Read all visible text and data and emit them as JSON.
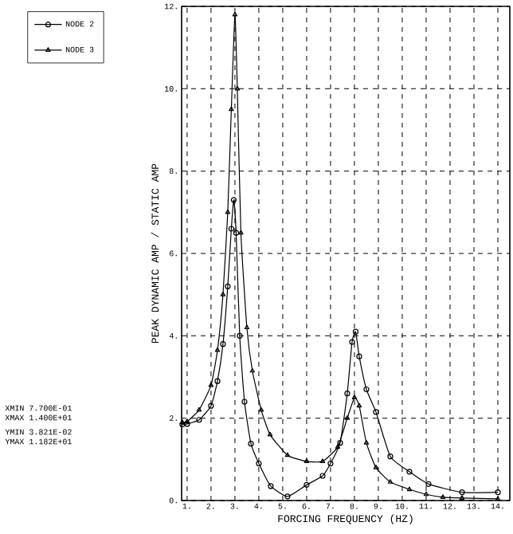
{
  "chart_data": {
    "type": "line",
    "xlabel": "FORCING FREQUENCY (HZ)",
    "ylabel": "PEAK DYNAMIC AMP / STATIC AMP",
    "xlim": [
      0.77,
      14.5
    ],
    "ylim": [
      0,
      12
    ],
    "xticks": [
      {
        "value": 1,
        "label": "1."
      },
      {
        "value": 2,
        "label": "2."
      },
      {
        "value": 3,
        "label": "3."
      },
      {
        "value": 4,
        "label": "4."
      },
      {
        "value": 5,
        "label": "5."
      },
      {
        "value": 6,
        "label": "6."
      },
      {
        "value": 7,
        "label": "7."
      },
      {
        "value": 8,
        "label": "8."
      },
      {
        "value": 9,
        "label": "9."
      },
      {
        "value": 10,
        "label": "10."
      },
      {
        "value": 11,
        "label": "11."
      },
      {
        "value": 12,
        "label": "12."
      },
      {
        "value": 13,
        "label": "13."
      },
      {
        "value": 14,
        "label": "14."
      }
    ],
    "yticks": [
      {
        "value": 0,
        "label": "0."
      },
      {
        "value": 2,
        "label": "2."
      },
      {
        "value": 4,
        "label": "4."
      },
      {
        "value": 6,
        "label": "6."
      },
      {
        "value": 8,
        "label": "8."
      },
      {
        "value": 10,
        "label": "10."
      },
      {
        "value": 12,
        "label": "12."
      }
    ],
    "grid": true,
    "legend": "left",
    "line_style": "solid",
    "series": [
      {
        "name": "NODE 2",
        "color": "#000000",
        "marker": "circle",
        "x": [
          0.8,
          1.0,
          1.5,
          2.0,
          2.27,
          2.5,
          2.7,
          2.85,
          2.95,
          3.05,
          3.2,
          3.4,
          3.67,
          4.0,
          4.5,
          5.2,
          6.0,
          6.67,
          7.0,
          7.4,
          7.7,
          7.9,
          8.05,
          8.2,
          8.5,
          8.9,
          9.5,
          10.3,
          11.1,
          12.5,
          14.0
        ],
        "values": [
          1.85,
          1.86,
          1.96,
          2.3,
          2.9,
          3.8,
          5.2,
          6.6,
          7.3,
          6.5,
          4.0,
          2.4,
          1.38,
          0.9,
          0.35,
          0.1,
          0.38,
          0.6,
          0.9,
          1.4,
          2.6,
          3.85,
          4.1,
          3.5,
          2.7,
          2.15,
          1.07,
          0.7,
          0.4,
          0.2,
          0.2
        ]
      },
      {
        "name": "NODE 3",
        "color": "#000000",
        "marker": "triangle",
        "x": [
          0.8,
          1.0,
          1.5,
          2.0,
          2.27,
          2.5,
          2.7,
          2.85,
          3.0,
          3.1,
          3.25,
          3.5,
          3.73,
          4.1,
          4.47,
          5.2,
          6.0,
          6.67,
          7.3,
          7.7,
          8.0,
          8.2,
          8.5,
          8.9,
          9.5,
          10.3,
          11.0,
          11.7,
          12.5,
          14.0
        ],
        "values": [
          1.9,
          1.92,
          2.2,
          2.8,
          3.65,
          5.0,
          7.0,
          9.5,
          11.8,
          10.0,
          6.5,
          4.2,
          3.15,
          2.2,
          1.6,
          1.1,
          0.95,
          0.95,
          1.3,
          2.0,
          2.5,
          2.3,
          1.4,
          0.8,
          0.45,
          0.27,
          0.15,
          0.08,
          0.06,
          0.04
        ]
      }
    ],
    "annotations": [
      "XMIN  7.700E-01",
      "XMAX  1.400E+01",
      "YMIN  3.821E-02",
      "YMAX  1.182E+01"
    ]
  }
}
